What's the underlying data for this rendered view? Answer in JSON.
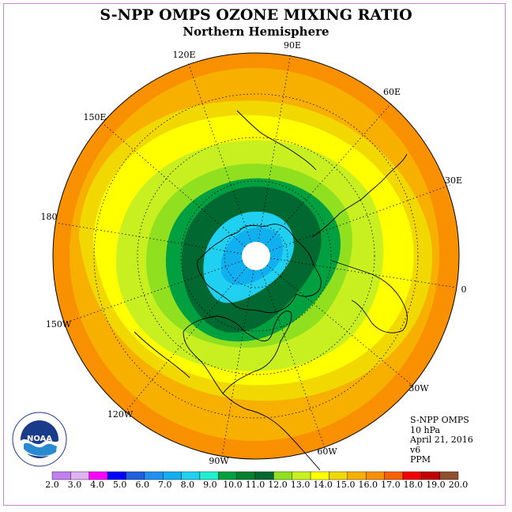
{
  "title": "S-NPP OMPS OZONE MIXING RATIO",
  "subtitle": "Northern Hemisphere",
  "info": {
    "line1": "S-NPP OMPS",
    "line2": "10 hPa",
    "line3": "April 21, 2016",
    "line4": "v6",
    "line5": "PPM"
  },
  "longitude_labels": [
    "90E",
    "60E",
    "30E",
    "0",
    "30W",
    "60W",
    "90W",
    "120W",
    "150W",
    "180",
    "150E",
    "120E"
  ],
  "logo_text": "NOAA",
  "colorbar": {
    "ticks": [
      "2.0",
      "3.0",
      "4.0",
      "5.0",
      "6.0",
      "7.0",
      "8.0",
      "9.0",
      "10.0",
      "11.0",
      "12.0",
      "13.0",
      "14.0",
      "15.0",
      "16.0",
      "17.0",
      "18.0",
      "19.0",
      "20.0"
    ],
    "colors": [
      "#c080f0",
      "#e0b0f0",
      "#ff00ff",
      "#0000ff",
      "#2060e0",
      "#2090f0",
      "#10b0f0",
      "#20d0f0",
      "#20f0d0",
      "#00a040",
      "#008030",
      "#006830",
      "#90e020",
      "#c8f020",
      "#ffff00",
      "#f0d800",
      "#f8b000",
      "#f89000",
      "#f86000",
      "#f00000",
      "#c00000",
      "#905030"
    ]
  },
  "contour_bands": [
    {
      "level": 17.0,
      "color": "#f89000"
    },
    {
      "level": 16.0,
      "color": "#f8b000"
    },
    {
      "level": 15.0,
      "color": "#f0d800"
    },
    {
      "level": 14.0,
      "color": "#ffff00"
    },
    {
      "level": 13.0,
      "color": "#c8f020"
    },
    {
      "level": 12.0,
      "color": "#90e020"
    },
    {
      "level": 11.0,
      "color": "#00a040"
    },
    {
      "level": 10.0,
      "color": "#006830"
    },
    {
      "level": 9.0,
      "color": "#20d0f0"
    },
    {
      "level": 8.0,
      "color": "#10b0f0"
    }
  ]
}
